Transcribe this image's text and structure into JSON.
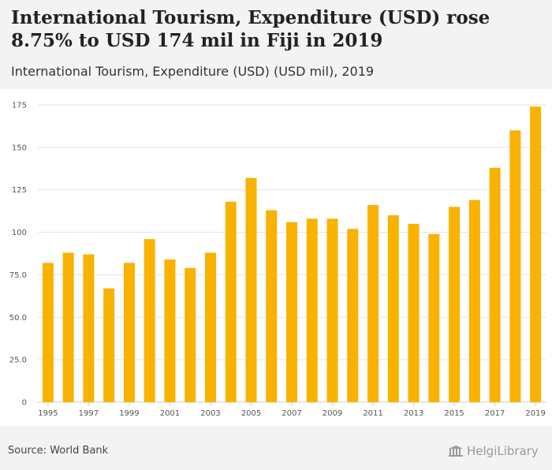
{
  "header": {
    "title": "International Tourism, Expenditure (USD) rose 8.75% to USD 174 mil in Fiji in 2019",
    "subtitle": "International Tourism, Expenditure (USD) (USD mil), 2019"
  },
  "footer": {
    "source": "Source: World Bank",
    "logo_text": "HelgiLibrary"
  },
  "colors": {
    "bar": "#f9b200",
    "grid": "#e3e3e3",
    "axis_text": "#555555"
  },
  "chart_data": {
    "type": "bar",
    "title": "International Tourism, Expenditure (USD) rose 8.75% to USD 174 mil in Fiji in 2019",
    "subtitle": "International Tourism, Expenditure (USD) (USD mil), 2019",
    "xlabel": "",
    "ylabel": "",
    "ylim": [
      0,
      175
    ],
    "yticks": [
      "0",
      "25.0",
      "50.0",
      "75.0",
      "100",
      "125",
      "150",
      "175"
    ],
    "ytick_values": [
      0,
      25,
      50,
      75,
      100,
      125,
      150,
      175
    ],
    "categories": [
      "1995",
      "1996",
      "1997",
      "1998",
      "1999",
      "2000",
      "2001",
      "2002",
      "2003",
      "2004",
      "2005",
      "2006",
      "2007",
      "2008",
      "2009",
      "2010",
      "2011",
      "2012",
      "2013",
      "2014",
      "2015",
      "2016",
      "2017",
      "2018",
      "2019"
    ],
    "xtick_labels": [
      "1995",
      "1997",
      "1999",
      "2001",
      "2003",
      "2005",
      "2007",
      "2009",
      "2011",
      "2013",
      "2015",
      "2017",
      "2019"
    ],
    "values": [
      82,
      88,
      87,
      67,
      82,
      96,
      84,
      79,
      88,
      118,
      132,
      113,
      106,
      108,
      108,
      102,
      116,
      110,
      105,
      99,
      115,
      119,
      138,
      160,
      174
    ],
    "grid": true,
    "legend": "none"
  }
}
